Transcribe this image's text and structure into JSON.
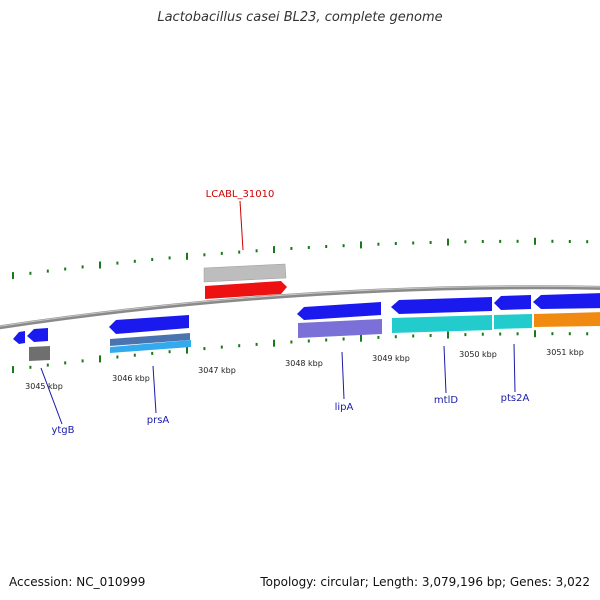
{
  "title": "Lactobacillus casei BL23, complete genome",
  "footer": {
    "accession": "Accession: NC_010999",
    "summary": "Topology: circular; Length: 3,079,196 bp; Genes: 3,022"
  },
  "scale_labels": [
    "3045 kbp",
    "3046 kbp",
    "3047 kbp",
    "3048 kbp",
    "3049 kbp",
    "3050 kbp",
    "3051 kbp"
  ],
  "gene_labels": {
    "ytgB": "ytgB",
    "prsA": "prsA",
    "LCABL_31010": "LCABL_31010",
    "lipA": "lipA",
    "mtlD": "mtlD",
    "pts2A": "pts2A"
  },
  "colors": {
    "backbone": "#8a8a8a",
    "forward_gene": "#1a1aee",
    "tick": "#1a7a1a",
    "label_blue": "#1a1aaa",
    "label_red": "#cc0000",
    "red_feature": "#ee1111",
    "gray_feature": "#bdbdbd",
    "dark_gray_feature": "#6f6f6f",
    "violet_feature": "#7b6fd8",
    "cyan_feature": "#22cccc",
    "skyblue_feature": "#33aaee",
    "steel_feature": "#4a74b0",
    "orange_feature": "#f08a10"
  }
}
